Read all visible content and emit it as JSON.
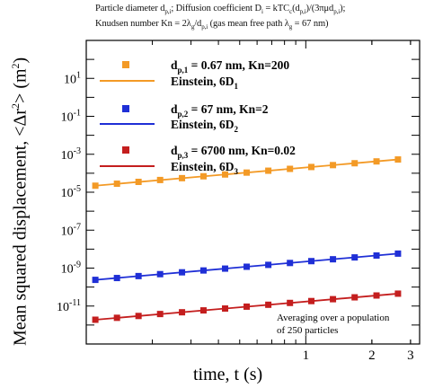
{
  "caption": {
    "line1_text": "Particle diameter d",
    "line1_sub1": "p,i",
    "line1_mid": "; Diffusion coefficient D",
    "line1_sub2": "i",
    "line1_mid2": " = kTC",
    "line1_sub3": "c",
    "line1_mid3": "(d",
    "line1_sub4": "p,i",
    "line1_mid4": ")/(3πμd",
    "line1_sub5": "p,i",
    "line1_end": ");",
    "line2_text": "Knudsen number Kn = 2λ",
    "line2_sub1": "g",
    "line2_mid": "/d",
    "line2_sub2": "p,i",
    "line2_end": " (gas mean free path λ",
    "line2_sub3": "g",
    "line2_end2": " = 67 nm)"
  },
  "axes": {
    "ylabel_main": "Mean squared displacement, <Δr",
    "ylabel_sup": "2",
    "ylabel_end": "> (m",
    "ylabel_sup2": "2",
    "ylabel_close": ")",
    "xlabel": "time, t (s)"
  },
  "annotation": {
    "line1": "Averaging over a population",
    "line2": "of 250 particles"
  },
  "legend": [
    {
      "label_pre": "d",
      "label_sub": "p,1",
      "label_post": " = 0.67 nm, Kn=200",
      "kind": "marker",
      "color": "#F39A26"
    },
    {
      "label_pre": "Einstein, 6D",
      "label_sub": "1",
      "label_post": "",
      "kind": "line",
      "color": "#F39A26"
    },
    {
      "label_pre": "d",
      "label_sub": "p,2",
      "label_post": " = 67 nm, Kn=2",
      "kind": "marker",
      "color": "#1F2FD6"
    },
    {
      "label_pre": "Einstein, 6D",
      "label_sub": "2",
      "label_post": "",
      "kind": "line",
      "color": "#1F2FD6"
    },
    {
      "label_pre": "d",
      "label_sub": "p,3",
      "label_post": " = 6700 nm, Kn=0.02",
      "kind": "marker",
      "color": "#C41E1E"
    },
    {
      "label_pre": "Einstein, 6D",
      "label_sub": "3",
      "label_post": "",
      "kind": "line",
      "color": "#C41E1E"
    }
  ],
  "chart_data": {
    "type": "scatter",
    "title": "",
    "xlabel": "time, t (s)",
    "ylabel": "Mean squared displacement, <Δr^2> (m^2)",
    "xscale": "log",
    "yscale": "log",
    "xlim": [
      0.1,
      3.3
    ],
    "ylim": [
      1e-13,
      1000.0
    ],
    "x_ticklabels": [
      {
        "value": 1,
        "label": "1"
      },
      {
        "value": 2,
        "label": "2"
      },
      {
        "value": 3,
        "label": "3"
      }
    ],
    "y_ticklabels": [
      {
        "value": 10.0,
        "base": "10",
        "exp": "1"
      },
      {
        "value": 0.1,
        "base": "10",
        "exp": "-1"
      },
      {
        "value": 0.001,
        "base": "10",
        "exp": "-3"
      },
      {
        "value": 1e-05,
        "base": "10",
        "exp": "-5"
      },
      {
        "value": 1e-07,
        "base": "10",
        "exp": "-7"
      },
      {
        "value": 1e-09,
        "base": "10",
        "exp": "-9"
      },
      {
        "value": 1e-11,
        "base": "10",
        "exp": "-11"
      }
    ],
    "x": [
      0.11,
      0.138,
      0.173,
      0.217,
      0.273,
      0.342,
      0.429,
      0.538,
      0.675,
      0.847,
      1.06,
      1.33,
      1.67,
      2.1,
      2.63
    ],
    "series": [
      {
        "name": "dp,1 = 0.67 nm, Kn=200",
        "color": "#F39A26",
        "values": [
          2.2e-05,
          2.8e-05,
          3.5e-05,
          4.4e-05,
          5.5e-05,
          6.9e-05,
          8.6e-05,
          0.000108,
          0.000136,
          0.00017,
          0.000213,
          0.000268,
          0.000336,
          0.00042,
          0.00053
        ],
        "fit_name": "Einstein, 6D1",
        "fit_start": 2.2e-05,
        "fit_end": 0.00053
      },
      {
        "name": "dp,2 = 67 nm, Kn=2",
        "color": "#1F2FD6",
        "values": [
          2.4e-10,
          3e-10,
          3.8e-10,
          4.8e-10,
          6e-10,
          7.5e-10,
          9.4e-10,
          1.18e-09,
          1.48e-09,
          1.86e-09,
          2.33e-09,
          2.92e-09,
          3.66e-09,
          4.6e-09,
          5.8e-09
        ],
        "fit_name": "Einstein, 6D2",
        "fit_start": 2.4e-10,
        "fit_end": 5.8e-09
      },
      {
        "name": "dp,3 = 6700 nm, Kn=0.02",
        "color": "#C41E1E",
        "values": [
          1.9e-12,
          2.4e-12,
          3e-12,
          3.8e-12,
          4.7e-12,
          5.9e-12,
          7.4e-12,
          9.3e-12,
          1.17e-11,
          1.46e-11,
          1.83e-11,
          2.3e-11,
          2.88e-11,
          3.6e-11,
          4.5e-11
        ],
        "fit_name": "Einstein, 6D3",
        "fit_start": 1.9e-12,
        "fit_end": 4.5e-11
      }
    ],
    "grid": false,
    "legend_position": "top-left"
  }
}
